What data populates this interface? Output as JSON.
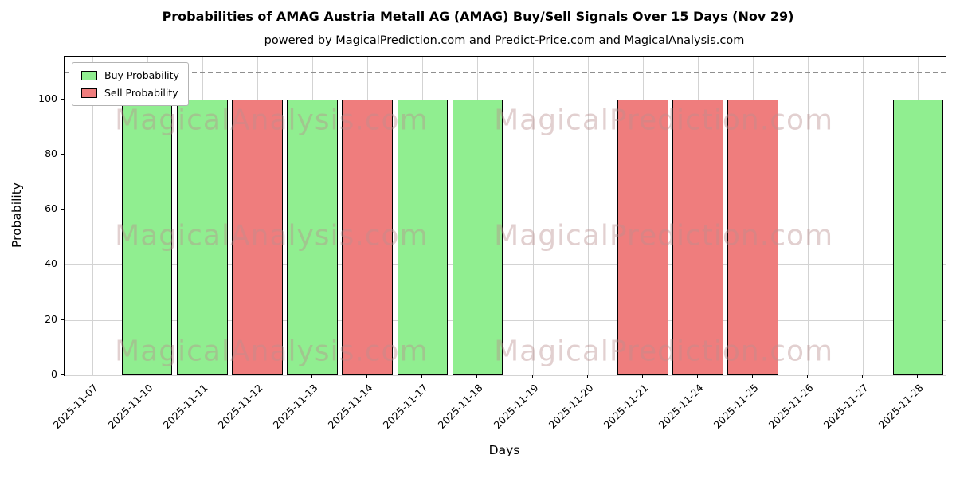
{
  "chart_data": {
    "type": "bar",
    "title": "Probabilities of AMAG Austria Metall AG (AMAG) Buy/Sell Signals Over 15 Days (Nov 29)",
    "subtitle": "powered by MagicalPrediction.com and Predict-Price.com and MagicalAnalysis.com",
    "xlabel": "Days",
    "ylabel": "Probability",
    "ylim": [
      0,
      115.5
    ],
    "yticks": [
      0,
      20,
      40,
      60,
      80,
      100
    ],
    "dashed_line_y": 110,
    "grid": true,
    "legend_position": "upper left",
    "categories": [
      "2025-11-07",
      "2025-11-10",
      "2025-11-11",
      "2025-11-12",
      "2025-11-13",
      "2025-11-14",
      "2025-11-17",
      "2025-11-18",
      "2025-11-19",
      "2025-11-20",
      "2025-11-21",
      "2025-11-24",
      "2025-11-25",
      "2025-11-26",
      "2025-11-27",
      "2025-11-28"
    ],
    "series": [
      {
        "name": "Buy Probability",
        "color": "#90ee90",
        "values": [
          0,
          100,
          100,
          0,
          100,
          0,
          100,
          100,
          0,
          0,
          0,
          0,
          0,
          0,
          0,
          100
        ]
      },
      {
        "name": "Sell Probability",
        "color": "#ef7d7d",
        "values": [
          0,
          0,
          0,
          100,
          0,
          100,
          0,
          0,
          0,
          0,
          100,
          100,
          100,
          0,
          0,
          0
        ]
      }
    ],
    "watermarks": [
      "MagicalAnalysis.com",
      "MagicalPrediction.com"
    ],
    "watermark_color": "rgba(185,142,142,0.42)",
    "bar_edge_color": "#000000"
  }
}
